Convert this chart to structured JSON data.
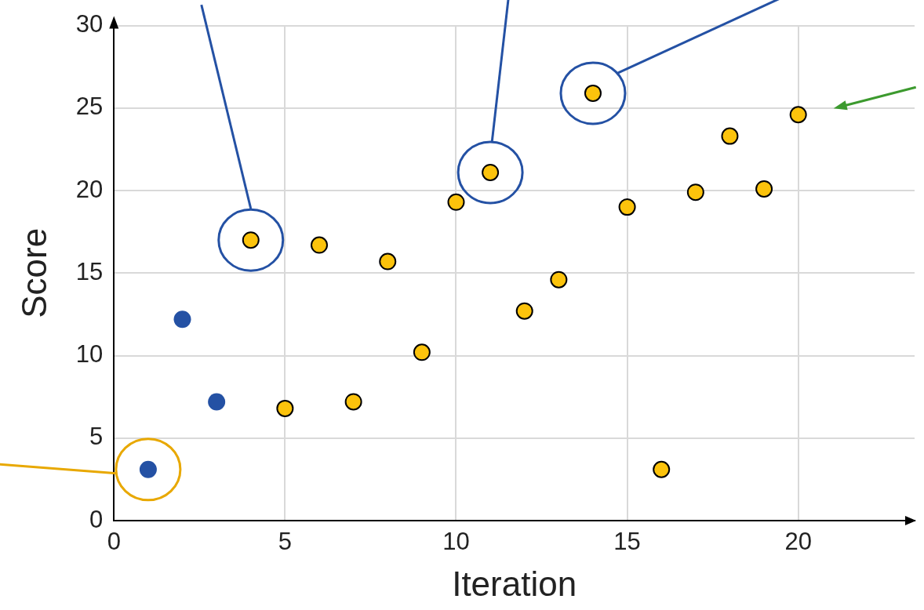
{
  "chart_data": {
    "type": "scatter",
    "xlabel": "Iteration",
    "ylabel": "Score",
    "xlim": [
      0,
      23.4
    ],
    "ylim": [
      0,
      30
    ],
    "xticks": [
      0,
      5,
      10,
      15,
      20
    ],
    "yticks": [
      0,
      5,
      10,
      15,
      20,
      25,
      30
    ],
    "grid": true,
    "legend": false,
    "marker": "circle",
    "series": [
      {
        "color": "#2451a4",
        "x": [
          1,
          2,
          3
        ],
        "values": [
          3.1,
          12.2,
          7.2
        ]
      },
      {
        "color": "#fcc30c",
        "x": [
          4,
          5,
          6,
          7,
          8,
          9,
          10,
          11,
          12,
          13,
          14,
          15,
          16,
          17,
          18,
          19,
          20
        ],
        "values": [
          17.0,
          6.8,
          16.7,
          7.2,
          15.7,
          10.2,
          19.3,
          21.1,
          12.7,
          14.6,
          25.9,
          19.0,
          3.1,
          19.9,
          23.3,
          20.1,
          24.6
        ]
      }
    ]
  }
}
